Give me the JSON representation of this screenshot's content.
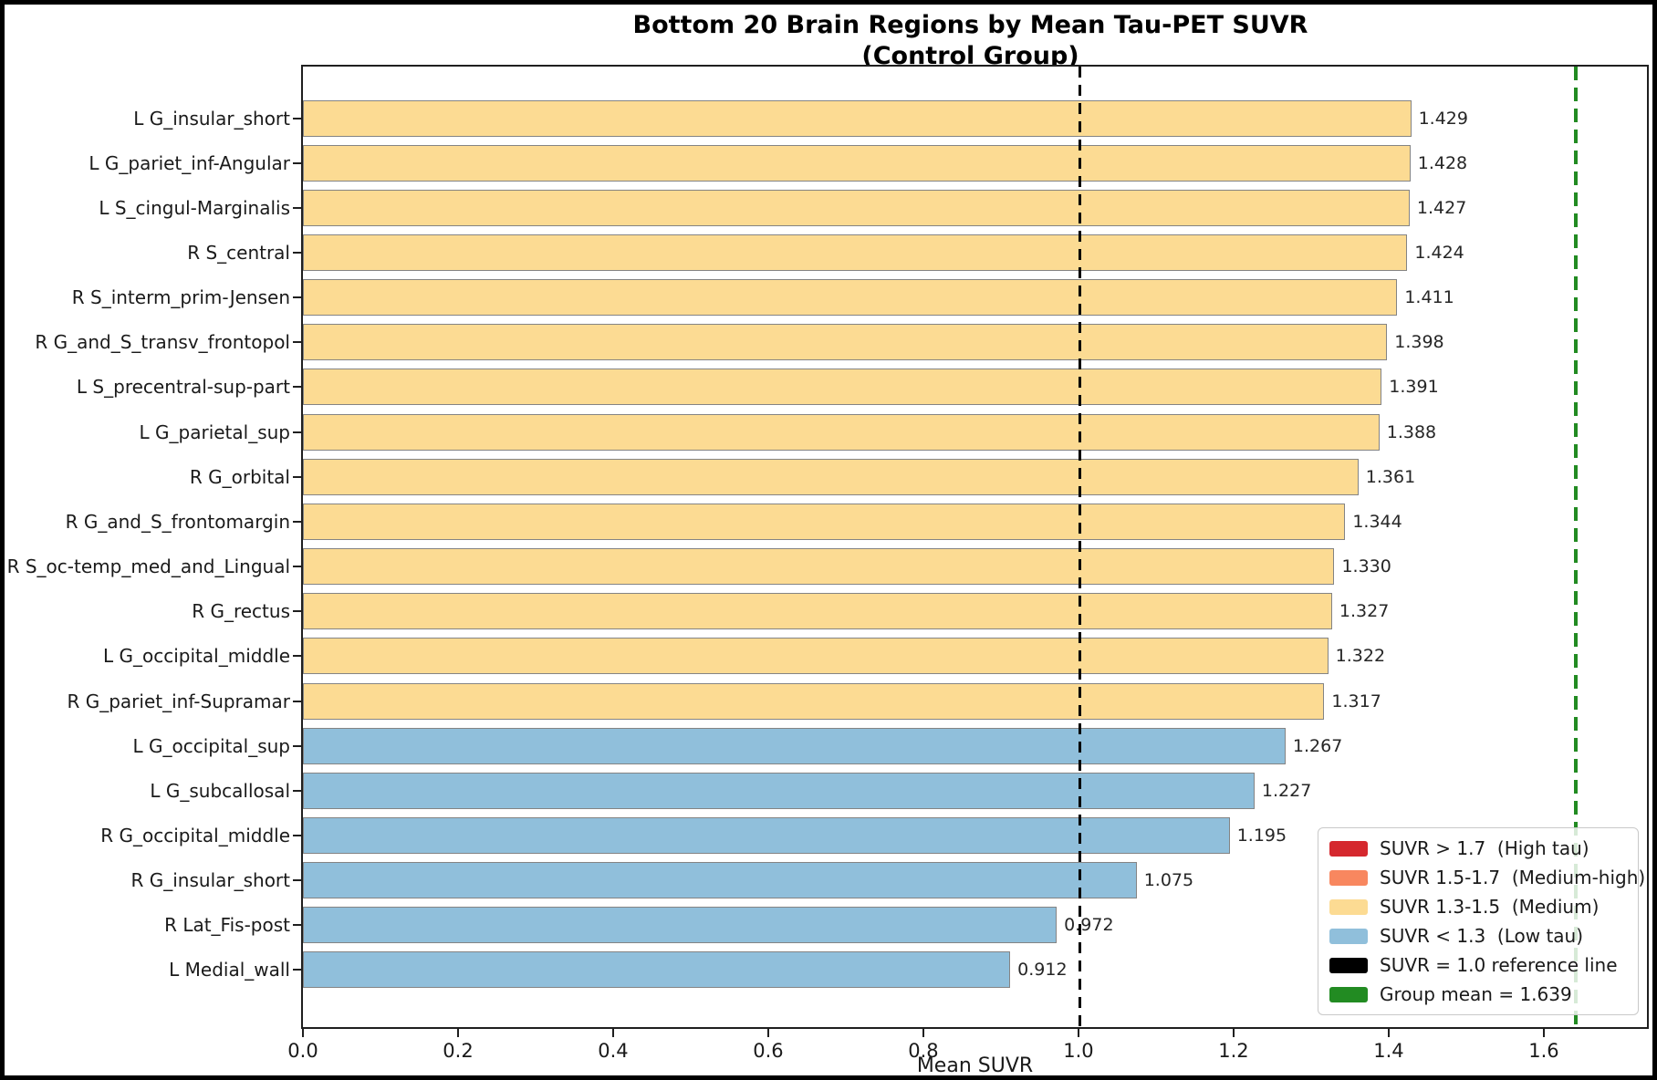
{
  "figure": {
    "title_line1": "Bottom 20 Brain Regions by Mean Tau-PET SUVR",
    "title_line2": "(Control Group)",
    "xlabel": "Mean SUVR"
  },
  "colors": {
    "high": "#D5282E",
    "medium_high": "#F8875F",
    "medium": "#FCDB93",
    "low": "#90BFDB",
    "bar_edge": "#848484",
    "reference_black": "#000000",
    "group_mean_green": "#228B22"
  },
  "chart_data": {
    "type": "bar",
    "orientation": "horizontal",
    "title": "Bottom 20 Brain Regions by Mean Tau-PET SUVR (Control Group)",
    "xlabel": "Mean SUVR",
    "ylabel": "",
    "grid": false,
    "xlim": [
      0,
      1.733
    ],
    "x_tick_values": [
      0.0,
      0.2,
      0.4,
      0.6,
      0.8,
      1.0,
      1.2,
      1.4,
      1.6
    ],
    "x_tick_labels": [
      "0.0",
      "0.2",
      "0.4",
      "0.6",
      "0.8",
      "1.0",
      "1.2",
      "1.4",
      "1.6"
    ],
    "categories": [
      "L G_insular_short",
      "L G_pariet_inf-Angular",
      "L S_cingul-Marginalis",
      "R S_central",
      "R S_interm_prim-Jensen",
      "R G_and_S_transv_frontopol",
      "L S_precentral-sup-part",
      "L G_parietal_sup",
      "R G_orbital",
      "R G_and_S_frontomargin",
      "R S_oc-temp_med_and_Lingual",
      "R G_rectus",
      "L G_occipital_middle",
      "R G_pariet_inf-Supramar",
      "L G_occipital_sup",
      "L G_subcallosal",
      "R G_occipital_middle",
      "R G_insular_short",
      "R Lat_Fis-post",
      "L Medial_wall"
    ],
    "values": [
      1.429,
      1.428,
      1.427,
      1.424,
      1.411,
      1.398,
      1.391,
      1.388,
      1.361,
      1.344,
      1.33,
      1.327,
      1.322,
      1.317,
      1.267,
      1.227,
      1.195,
      1.075,
      0.972,
      0.912
    ],
    "value_labels": [
      "1.429",
      "1.428",
      "1.427",
      "1.424",
      "1.411",
      "1.398",
      "1.391",
      "1.388",
      "1.361",
      "1.344",
      "1.330",
      "1.327",
      "1.322",
      "1.317",
      "1.267",
      "1.227",
      "1.195",
      "1.075",
      "0.972",
      "0.912"
    ],
    "bands": [
      "medium",
      "medium",
      "medium",
      "medium",
      "medium",
      "medium",
      "medium",
      "medium",
      "medium",
      "medium",
      "medium",
      "medium",
      "medium",
      "medium",
      "low",
      "low",
      "low",
      "low",
      "low",
      "low"
    ],
    "reference_line": {
      "value": 1.0,
      "label": "SUVR = 1.0 reference line"
    },
    "group_mean_line": {
      "value": 1.639,
      "label": "Group mean = 1.639"
    },
    "legend_position": "lower right",
    "legend": [
      {
        "label": "SUVR > 1.7  (High tau)",
        "color_key": "high"
      },
      {
        "label": "SUVR 1.5-1.7  (Medium-high)",
        "color_key": "medium_high"
      },
      {
        "label": "SUVR 1.3-1.5  (Medium)",
        "color_key": "medium"
      },
      {
        "label": "SUVR < 1.3  (Low tau)",
        "color_key": "low"
      },
      {
        "label": "SUVR = 1.0 reference line",
        "color_key": "reference_black"
      },
      {
        "label": "Group mean = 1.639",
        "color_key": "group_mean_green"
      }
    ]
  }
}
